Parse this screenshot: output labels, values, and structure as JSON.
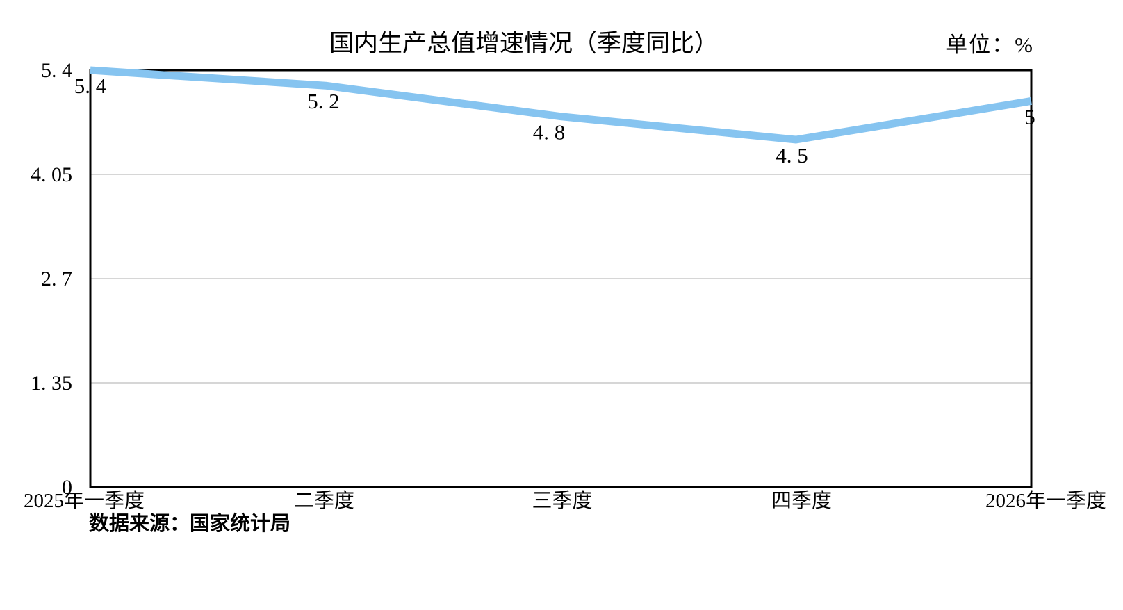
{
  "chart_data": {
    "type": "line",
    "title": "国内生产总值增速情况（季度同比）",
    "unit_label": "单位：%",
    "source_note": "数据来源：国家统计局",
    "categories": [
      "2025年一季度",
      "二季度",
      "三季度",
      "四季度",
      "2026年一季度"
    ],
    "values": [
      5.4,
      5.2,
      4.8,
      4.5,
      5
    ],
    "data_labels": [
      "5. 4",
      "5. 2",
      "4. 8",
      "4. 5",
      "5"
    ],
    "y_ticks": [
      5.4,
      4.05,
      2.7,
      1.35,
      0
    ],
    "y_tick_labels": [
      "5. 4",
      "4. 05",
      "2. 7",
      "1. 35",
      "0"
    ],
    "ylim": [
      0,
      5.4
    ],
    "xlabel": "",
    "ylabel": "",
    "grid": "horizontal",
    "legend": "none",
    "line_color": "#86C4F0",
    "axis_color": "#000000",
    "gridline_color": "#C9C9C9",
    "text_color": "#000000"
  }
}
